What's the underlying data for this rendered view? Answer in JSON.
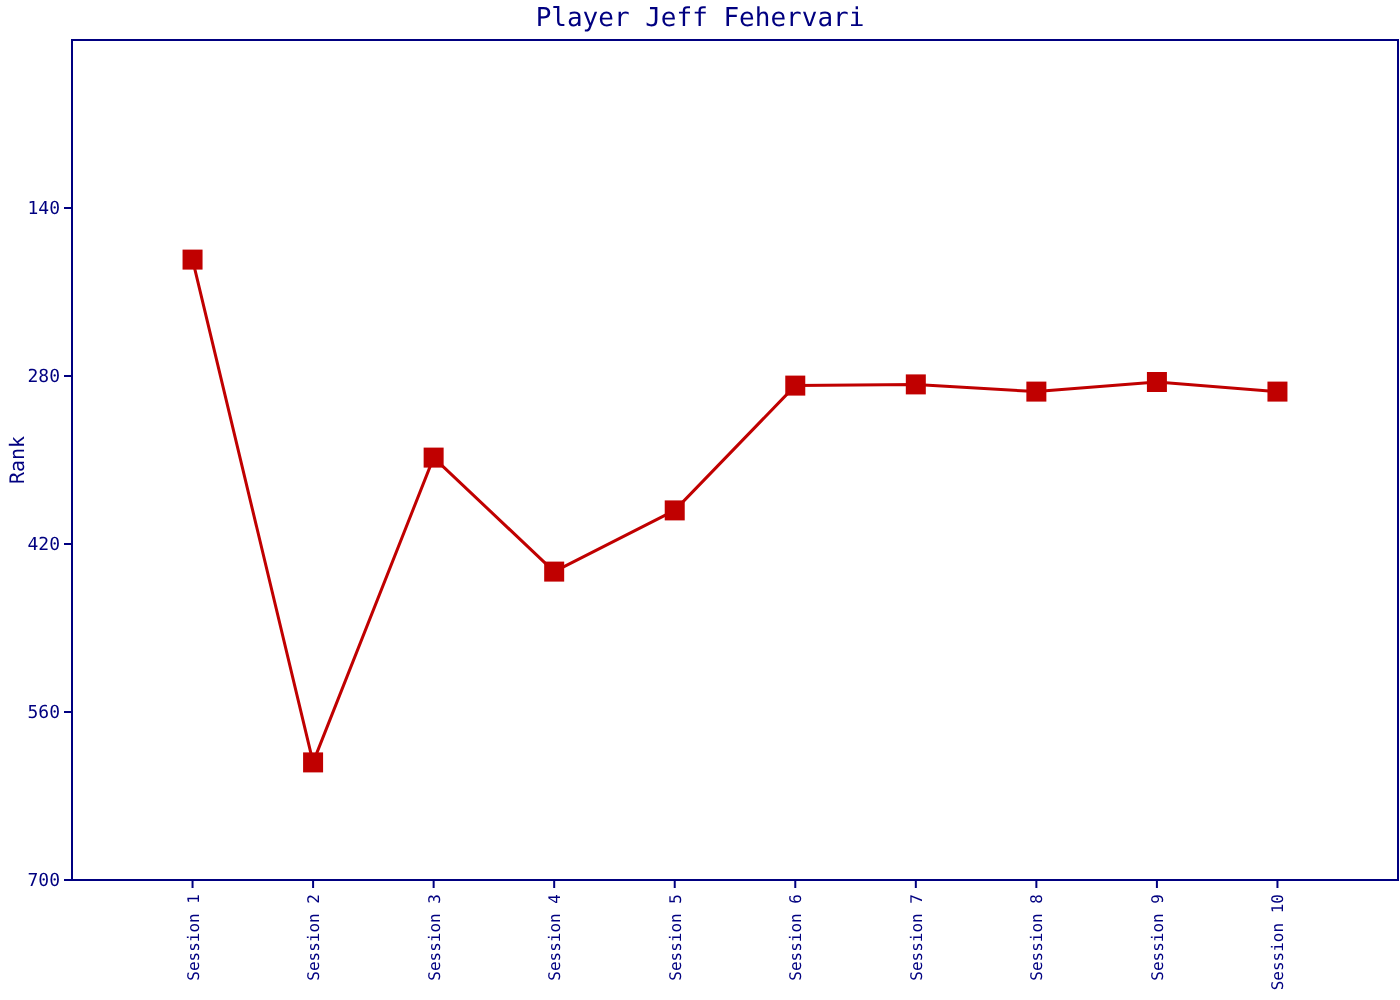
{
  "chart_data": {
    "type": "line",
    "title": "Player Jeff Fehervari",
    "ylabel": "Rank",
    "categories": [
      "Session 1",
      "Session 2",
      "Session 3",
      "Session 4",
      "Session 5",
      "Session 6",
      "Session 7",
      "Session 8",
      "Session 9",
      "Session 10"
    ],
    "series": [
      {
        "color": "#c00000",
        "values": [
          183,
          602,
          348,
          443,
          392,
          288,
          287,
          293,
          285,
          293
        ]
      }
    ],
    "ylim": [
      700,
      0
    ],
    "yticks": [
      140,
      280,
      420,
      560,
      700
    ],
    "grid": false,
    "marker": "square",
    "line_style": "solid"
  }
}
